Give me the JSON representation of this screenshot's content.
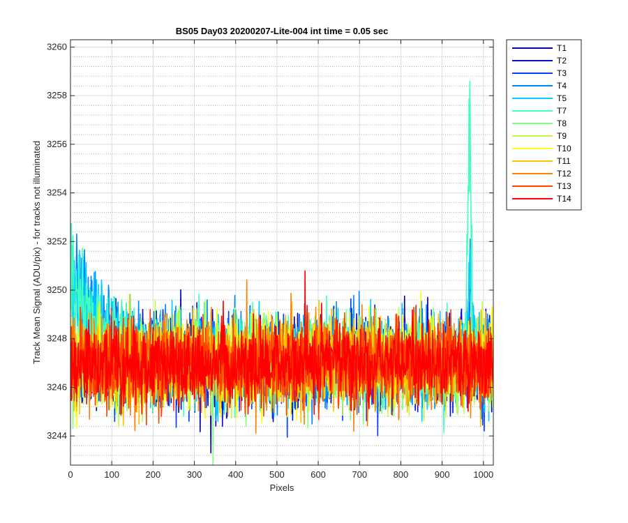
{
  "chart_data": {
    "type": "line",
    "title": "BS05 Day03 20200207-Lite-004 int time = 0.05 sec",
    "xlabel": "Pixels",
    "ylabel": "Track Mean Signal (ADU/pix) - for tracks not illuminated",
    "xlim": [
      0,
      1024
    ],
    "ylim": [
      3242.8,
      3260.3
    ],
    "xticks": [
      0,
      100,
      200,
      300,
      400,
      500,
      600,
      700,
      800,
      900,
      1000
    ],
    "yticks": [
      3244,
      3246,
      3248,
      3250,
      3252,
      3254,
      3256,
      3258,
      3260
    ],
    "grid": true,
    "minor_grid_y": true,
    "legend_position": "outside-right",
    "series": [
      {
        "name": "T1",
        "color": "#0000b0",
        "base": 3247.0,
        "noise": 0.85,
        "seed": 1
      },
      {
        "name": "T2",
        "color": "#0010d8",
        "base": 3247.0,
        "noise": 0.85,
        "seed": 2
      },
      {
        "name": "T3",
        "color": "#0040ff",
        "base": 3247.0,
        "noise": 0.85,
        "seed": 3
      },
      {
        "name": "T4",
        "color": "#0088ff",
        "base": 3247.1,
        "noise": 0.9,
        "seed": 4,
        "start_excess": 5.6,
        "decay_px": 70,
        "spike": {
          "x": 970,
          "height": 4.0,
          "width": 8
        }
      },
      {
        "name": "T5",
        "color": "#00ccff",
        "base": 3247.1,
        "noise": 0.9,
        "seed": 5,
        "start_excess": 5.0,
        "decay_px": 75,
        "spike": {
          "x": 968,
          "height": 5.0,
          "width": 8
        }
      },
      {
        "name": "T7",
        "color": "#40ffc0",
        "base": 3247.2,
        "noise": 0.9,
        "seed": 7,
        "start_excess": 4.3,
        "decay_px": 80,
        "spike": {
          "x": 966,
          "height": 12.0,
          "width": 6
        }
      },
      {
        "name": "T8",
        "color": "#80ff80",
        "base": 3247.0,
        "noise": 0.85,
        "seed": 8
      },
      {
        "name": "T9",
        "color": "#c0ff40",
        "base": 3247.0,
        "noise": 0.85,
        "seed": 9
      },
      {
        "name": "T10",
        "color": "#ffff00",
        "base": 3247.0,
        "noise": 0.85,
        "seed": 10
      },
      {
        "name": "T11",
        "color": "#ffc000",
        "base": 3247.0,
        "noise": 0.85,
        "seed": 11
      },
      {
        "name": "T12",
        "color": "#ff8000",
        "base": 3247.0,
        "noise": 0.85,
        "seed": 12
      },
      {
        "name": "T13",
        "color": "#ff4000",
        "base": 3247.0,
        "noise": 0.85,
        "seed": 13
      },
      {
        "name": "T14",
        "color": "#ff0000",
        "base": 3247.0,
        "noise": 0.8,
        "seed": 14
      }
    ],
    "notable_points": [
      {
        "series": "T14",
        "x": 568,
        "y": 3250.8
      },
      {
        "series": "T8",
        "x": 345,
        "y": 3242.8
      },
      {
        "series": "T1",
        "x": 340,
        "y": 3243.3
      }
    ]
  }
}
